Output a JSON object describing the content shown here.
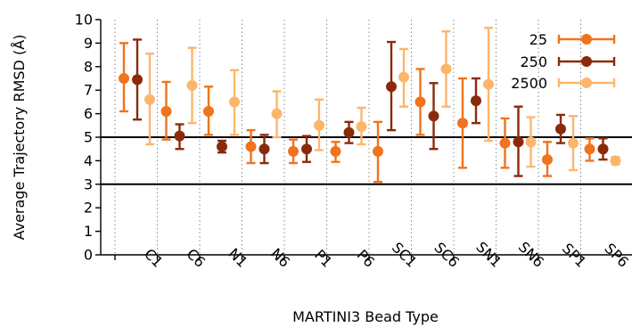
{
  "chart_data": {
    "type": "scatter",
    "xlabel": "MARTINI3 Bead Type",
    "ylabel": "Average Trajectory RMSD (Å)",
    "ylim": [
      0,
      10
    ],
    "yticks": [
      "0",
      "1",
      "2",
      "3",
      "4",
      "5",
      "6",
      "7",
      "8",
      "9",
      "10"
    ],
    "categories": [
      "C1",
      "C6",
      "N1",
      "N6",
      "P1",
      "P6",
      "SC1",
      "SC6",
      "SN1",
      "SN6",
      "SP1",
      "SP6"
    ],
    "reference_lines": [
      3,
      5
    ],
    "grid": "vertical dotted",
    "legend_position": "top-right",
    "series": [
      {
        "name": "25",
        "color": "#f0731d",
        "values": [
          7.5,
          6.1,
          6.1,
          4.6,
          4.4,
          4.4,
          4.4,
          6.5,
          5.6,
          4.75,
          4.05,
          4.5
        ],
        "err_low": [
          6.1,
          4.9,
          5.1,
          3.9,
          3.9,
          3.95,
          3.1,
          5.1,
          3.7,
          3.7,
          3.35,
          4.0
        ],
        "err_high": [
          9.0,
          7.35,
          7.15,
          5.3,
          4.9,
          4.8,
          5.65,
          7.9,
          7.5,
          5.8,
          4.8,
          4.95
        ]
      },
      {
        "name": "250",
        "color": "#8b2a0b",
        "values": [
          7.45,
          5.05,
          4.6,
          4.5,
          4.5,
          5.2,
          7.15,
          5.9,
          6.55,
          4.8,
          5.35,
          4.5
        ],
        "err_low": [
          5.75,
          4.5,
          4.35,
          3.9,
          3.95,
          4.75,
          5.3,
          4.5,
          5.6,
          3.35,
          4.75,
          4.05
        ],
        "err_high": [
          9.15,
          5.55,
          4.85,
          5.1,
          5.05,
          5.65,
          9.05,
          7.3,
          7.5,
          6.3,
          5.95,
          4.95
        ]
      },
      {
        "name": "2500",
        "color": "#fdb56b",
        "values": [
          6.6,
          7.2,
          6.5,
          6.0,
          5.5,
          5.45,
          7.55,
          7.9,
          7.25,
          4.8,
          4.75,
          4.0
        ],
        "err_low": [
          4.7,
          5.6,
          5.1,
          5.0,
          4.45,
          4.7,
          6.3,
          6.3,
          4.85,
          3.75,
          3.6,
          3.85
        ],
        "err_high": [
          8.55,
          8.8,
          7.85,
          6.95,
          6.6,
          6.25,
          8.75,
          9.5,
          9.65,
          5.85,
          5.9,
          4.15
        ]
      }
    ]
  }
}
